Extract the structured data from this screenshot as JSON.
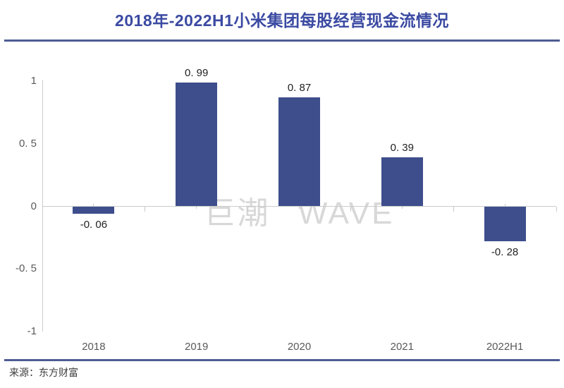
{
  "title": "2018年-2022H1小米集团每股经营现金流情况",
  "watermark": "巨潮 WAVE",
  "source": "来源：东方财富",
  "colors": {
    "bar": "#3E4E8C",
    "title": "#3B4AA2",
    "divider_rule": "#4D5C94",
    "axis_line": "#CCCCCC",
    "tick_label": "#595959",
    "value_label": "#1F1F1F",
    "watermark": "#D8D8D8",
    "source_text": "#3D3D3D",
    "background": "#FFFFFF"
  },
  "chart_data": {
    "type": "bar",
    "title": "2018年-2022H1小米集团每股经营现金流情况",
    "categories": [
      "2018",
      "2019",
      "2020",
      "2021",
      "2022H1"
    ],
    "values": [
      -0.06,
      0.99,
      0.87,
      0.39,
      -0.28
    ],
    "value_labels": [
      "-0. 06",
      "0. 99",
      "0. 87",
      "0. 39",
      "-0. 28"
    ],
    "yticks": [
      1,
      0.5,
      0,
      -0.5,
      -1
    ],
    "ytick_labels": [
      "1",
      "0. 5",
      "0",
      "-0. 5",
      "-1"
    ],
    "ylim": [
      -1,
      1
    ],
    "xlabel": "",
    "ylabel": "",
    "grid": "zero-line-only",
    "legend": "none",
    "source": "来源：东方财富",
    "watermark": "巨潮 WAVE"
  }
}
